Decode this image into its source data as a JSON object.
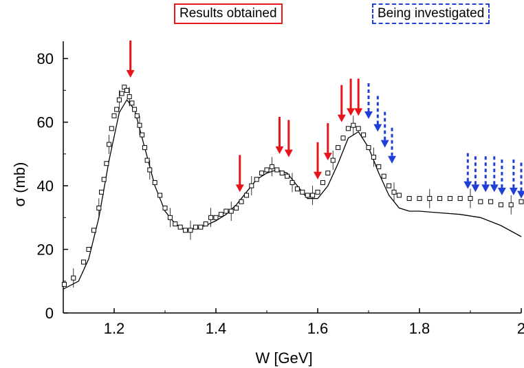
{
  "legend": {
    "results_label": "Results obtained",
    "investigated_label": "Being investigated"
  },
  "chart_data": {
    "type": "scatter",
    "title": "",
    "xlabel": "W [GeV]",
    "ylabel": "σ (mb)",
    "xlim": [
      1.1,
      2.0
    ],
    "ylim": [
      0,
      85
    ],
    "x_ticks": [
      1.2,
      1.4,
      1.6,
      1.8,
      2.0
    ],
    "x_tick_labels": [
      "1.2",
      "1.4",
      "1.6",
      "1.8",
      "2"
    ],
    "y_ticks": [
      0,
      20,
      40,
      60,
      80
    ],
    "y_tick_labels": [
      "0",
      "20",
      "40",
      "60",
      "80"
    ],
    "grid": false,
    "colors": {
      "obtained": "#e8141b",
      "investigated": "#1f3fd6",
      "data": "#000000"
    },
    "series": [
      {
        "marker": "open-square",
        "points": [
          [
            1.102,
            9
          ],
          [
            1.12,
            11
          ],
          [
            1.14,
            16
          ],
          [
            1.15,
            20
          ],
          [
            1.16,
            26
          ],
          [
            1.17,
            33
          ],
          [
            1.175,
            38
          ],
          [
            1.18,
            42
          ],
          [
            1.185,
            47
          ],
          [
            1.19,
            53
          ],
          [
            1.195,
            58
          ],
          [
            1.2,
            62
          ],
          [
            1.205,
            64
          ],
          [
            1.21,
            67
          ],
          [
            1.215,
            69
          ],
          [
            1.22,
            71
          ],
          [
            1.225,
            70
          ],
          [
            1.23,
            68
          ],
          [
            1.235,
            66
          ],
          [
            1.24,
            64
          ],
          [
            1.245,
            62
          ],
          [
            1.25,
            59
          ],
          [
            1.255,
            56
          ],
          [
            1.26,
            52
          ],
          [
            1.265,
            48
          ],
          [
            1.27,
            45
          ],
          [
            1.28,
            41
          ],
          [
            1.29,
            37
          ],
          [
            1.3,
            33
          ],
          [
            1.31,
            30
          ],
          [
            1.32,
            28
          ],
          [
            1.33,
            27
          ],
          [
            1.34,
            26
          ],
          [
            1.35,
            26
          ],
          [
            1.36,
            27
          ],
          [
            1.37,
            27
          ],
          [
            1.38,
            28
          ],
          [
            1.39,
            30
          ],
          [
            1.4,
            30
          ],
          [
            1.41,
            31
          ],
          [
            1.42,
            32
          ],
          [
            1.43,
            32
          ],
          [
            1.44,
            33
          ],
          [
            1.45,
            35
          ],
          [
            1.46,
            37
          ],
          [
            1.47,
            40
          ],
          [
            1.48,
            42
          ],
          [
            1.49,
            44
          ],
          [
            1.5,
            45
          ],
          [
            1.51,
            46
          ],
          [
            1.52,
            45
          ],
          [
            1.53,
            44
          ],
          [
            1.54,
            43
          ],
          [
            1.55,
            41
          ],
          [
            1.56,
            39
          ],
          [
            1.57,
            38
          ],
          [
            1.58,
            37
          ],
          [
            1.59,
            37
          ],
          [
            1.6,
            38
          ],
          [
            1.61,
            41
          ],
          [
            1.62,
            44
          ],
          [
            1.63,
            48
          ],
          [
            1.64,
            52
          ],
          [
            1.65,
            55
          ],
          [
            1.66,
            58
          ],
          [
            1.67,
            59
          ],
          [
            1.68,
            58
          ],
          [
            1.69,
            56
          ],
          [
            1.7,
            52
          ],
          [
            1.71,
            49
          ],
          [
            1.72,
            46
          ],
          [
            1.73,
            43
          ],
          [
            1.74,
            40
          ],
          [
            1.75,
            38
          ],
          [
            1.76,
            37
          ],
          [
            1.78,
            36
          ],
          [
            1.8,
            36
          ],
          [
            1.82,
            36
          ],
          [
            1.84,
            36
          ],
          [
            1.86,
            36
          ],
          [
            1.88,
            36
          ],
          [
            1.9,
            36
          ],
          [
            1.92,
            35
          ],
          [
            1.94,
            35
          ],
          [
            1.96,
            34
          ],
          [
            1.98,
            34
          ],
          [
            2.0,
            35
          ]
        ]
      },
      {
        "line": "solid",
        "points": [
          [
            1.1,
            7.5
          ],
          [
            1.13,
            10
          ],
          [
            1.15,
            17
          ],
          [
            1.17,
            30
          ],
          [
            1.19,
            48
          ],
          [
            1.21,
            63
          ],
          [
            1.225,
            67
          ],
          [
            1.24,
            64
          ],
          [
            1.26,
            52
          ],
          [
            1.28,
            40
          ],
          [
            1.3,
            32
          ],
          [
            1.32,
            28
          ],
          [
            1.34,
            26
          ],
          [
            1.36,
            26.5
          ],
          [
            1.38,
            27.5
          ],
          [
            1.4,
            29
          ],
          [
            1.42,
            31
          ],
          [
            1.44,
            34
          ],
          [
            1.46,
            38
          ],
          [
            1.48,
            42
          ],
          [
            1.5,
            44
          ],
          [
            1.52,
            45
          ],
          [
            1.54,
            44
          ],
          [
            1.56,
            40
          ],
          [
            1.58,
            36
          ],
          [
            1.6,
            36
          ],
          [
            1.62,
            40
          ],
          [
            1.64,
            47
          ],
          [
            1.66,
            55
          ],
          [
            1.68,
            57
          ],
          [
            1.7,
            52
          ],
          [
            1.72,
            44
          ],
          [
            1.74,
            37
          ],
          [
            1.76,
            33
          ],
          [
            1.78,
            32
          ],
          [
            1.8,
            32
          ],
          [
            1.84,
            31.5
          ],
          [
            1.88,
            31
          ],
          [
            1.92,
            30
          ],
          [
            1.96,
            27.5
          ],
          [
            2.0,
            24
          ]
        ]
      }
    ],
    "annotations": {
      "obtained_arrows_w": [
        1.232,
        1.447,
        1.525,
        1.543,
        1.6,
        1.62,
        1.647,
        1.665,
        1.68
      ],
      "obtained_arrows_sigma": [
        74,
        38,
        50,
        49,
        42,
        48,
        60,
        62,
        62
      ],
      "investigated_arrows_w": [
        1.7,
        1.718,
        1.732,
        1.746,
        1.895,
        1.91,
        1.93,
        1.947,
        1.962,
        1.985,
        2.0
      ],
      "investigated_arrows_sigma": [
        61,
        57,
        52,
        47,
        39,
        38,
        38,
        38,
        37,
        37,
        36
      ]
    }
  }
}
